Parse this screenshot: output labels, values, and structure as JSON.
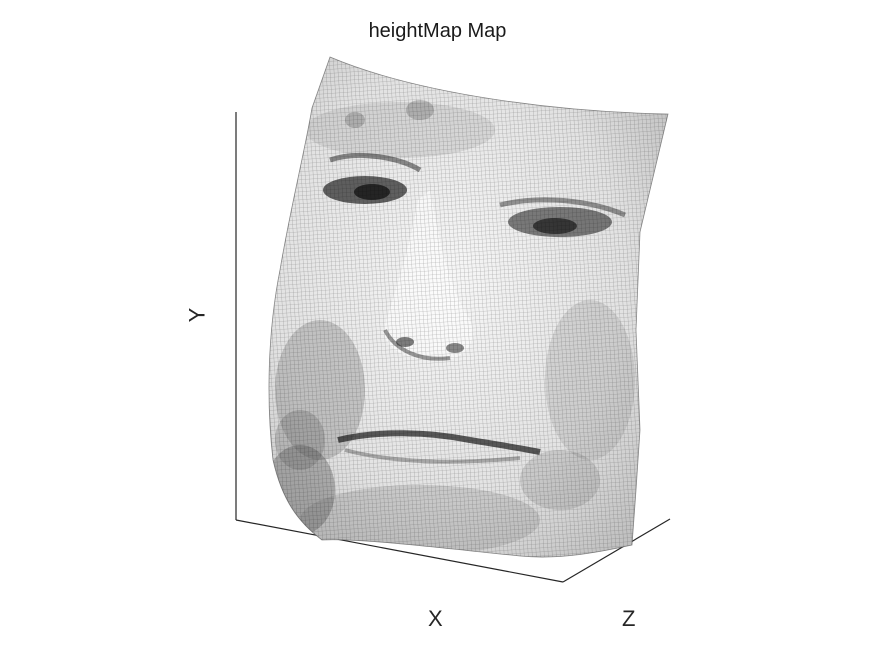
{
  "chart_data": {
    "type": "surface",
    "title": "heightMap Map",
    "xlabel": "X",
    "ylabel": "Y",
    "zlabel": "Z",
    "colormap": "gray",
    "grid": false,
    "box": "axes-only",
    "content": "mesh-surface"
  },
  "colors": {
    "axis": "#262626",
    "background": "#ffffff",
    "mesh_light": "#f4f4f4",
    "mesh_dark": "#2a2a2a"
  }
}
